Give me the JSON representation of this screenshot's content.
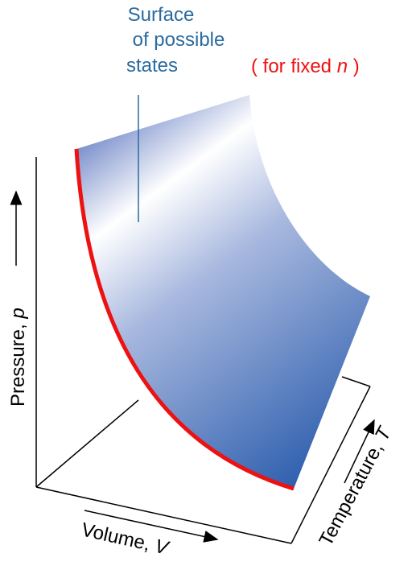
{
  "surface_label": {
    "lines": [
      "Surface",
      "of possible",
      "states"
    ]
  },
  "condition": {
    "before": "( for fixed ",
    "symbol": "n",
    "after": " )"
  },
  "axes": {
    "pressure": {
      "text": "Pressure, ",
      "symbol": "p"
    },
    "volume": {
      "text": "Volume, ",
      "symbol": "V"
    },
    "temperature": {
      "text": "Temperature, ",
      "symbol": "T"
    }
  }
}
